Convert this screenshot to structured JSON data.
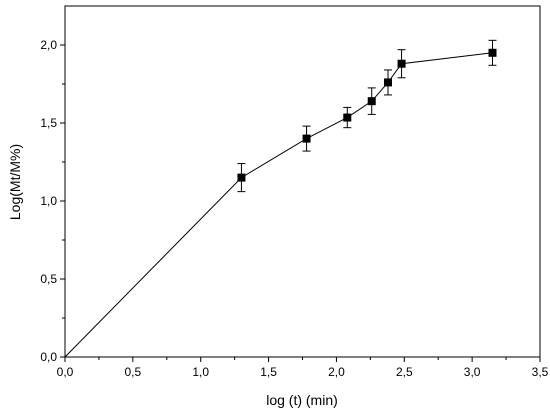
{
  "chart_data": {
    "type": "scatter",
    "title": "",
    "xlabel": "log (t) (min)",
    "ylabel": "Log(Mt/M%)",
    "xlim": [
      0.0,
      3.5
    ],
    "ylim": [
      0.0,
      2.25
    ],
    "x_ticks": [
      0.0,
      0.5,
      1.0,
      1.5,
      2.0,
      2.5,
      3.0,
      3.5
    ],
    "y_ticks": [
      0.0,
      0.5,
      1.0,
      1.5,
      2.0
    ],
    "x_tick_labels": [
      "0,0",
      "0,5",
      "1,0",
      "1,5",
      "2,0",
      "2,5",
      "3,0",
      "3,5"
    ],
    "y_tick_labels": [
      "0,0",
      "0,5",
      "1,0",
      "1,5",
      "2,0"
    ],
    "grid": false,
    "line_connects_points": true,
    "marker": "square",
    "color": "#000000",
    "points": [
      {
        "x": 0.0,
        "y": 0.0,
        "err": 0.0
      },
      {
        "x": 1.3,
        "y": 1.15,
        "err": 0.09
      },
      {
        "x": 1.78,
        "y": 1.4,
        "err": 0.08
      },
      {
        "x": 2.08,
        "y": 1.535,
        "err": 0.065
      },
      {
        "x": 2.26,
        "y": 1.64,
        "err": 0.085
      },
      {
        "x": 2.38,
        "y": 1.76,
        "err": 0.08
      },
      {
        "x": 2.48,
        "y": 1.88,
        "err": 0.09
      },
      {
        "x": 3.15,
        "y": 1.95,
        "err": 0.08
      }
    ]
  }
}
